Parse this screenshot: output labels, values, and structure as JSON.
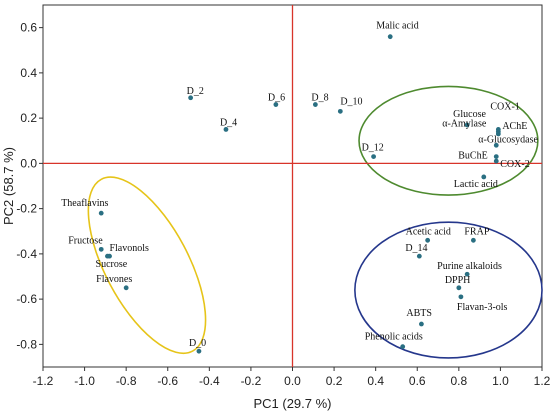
{
  "chart_data": {
    "type": "scatter",
    "xlabel": "PC1 (29.7 %)",
    "ylabel": "PC2 (58.7 %)",
    "xlim": [
      -1.2,
      1.2
    ],
    "ylim": [
      -0.9,
      0.7
    ],
    "xticks": [
      -1.2,
      -1.0,
      -0.8,
      -0.6,
      -0.4,
      -0.2,
      0.0,
      0.2,
      0.4,
      0.6,
      0.8,
      1.0,
      1.2
    ],
    "yticks": [
      -0.8,
      -0.6,
      -0.4,
      -0.2,
      0.0,
      0.2,
      0.4,
      0.6
    ],
    "xtick_labels": [
      "-1.2",
      "-1.0",
      "-0.8",
      "-0.6",
      "-0.4",
      "-0.2",
      "0.0",
      "0.2",
      "0.4",
      "0.6",
      "0.8",
      "1.0",
      "1.2"
    ],
    "ytick_labels": [
      "-0.8",
      "-0.6",
      "-0.4",
      "-0.2",
      "0.0",
      "0.2",
      "0.4",
      "0.6"
    ],
    "zero_lines": true,
    "colors": {
      "point": "#2a6f82",
      "zero_line": "#d8342a",
      "ellipse_yellow": "#e6c419",
      "ellipse_green": "#4e8a2f",
      "ellipse_blue": "#25378c"
    },
    "points": [
      {
        "label": "Malic acid",
        "x": 0.47,
        "y": 0.56
      },
      {
        "label": "D_2",
        "x": -0.49,
        "y": 0.29
      },
      {
        "label": "D_6",
        "x": -0.08,
        "y": 0.26
      },
      {
        "label": "D_8",
        "x": 0.11,
        "y": 0.26
      },
      {
        "label": "D_10",
        "x": 0.23,
        "y": 0.23
      },
      {
        "label": "D_4",
        "x": -0.32,
        "y": 0.15
      },
      {
        "label": "Glucose",
        "x": 0.84,
        "y": 0.17
      },
      {
        "label": "COX-1",
        "x": 0.99,
        "y": 0.15
      },
      {
        "label": "α-Amylase",
        "x": 0.99,
        "y": 0.14
      },
      {
        "label": "AChE",
        "x": 0.99,
        "y": 0.13
      },
      {
        "label": "α-Glucosydase",
        "x": 0.98,
        "y": 0.08
      },
      {
        "label": "D_12",
        "x": 0.39,
        "y": 0.03
      },
      {
        "label": "BuChE",
        "x": 0.98,
        "y": 0.03
      },
      {
        "label": "COX-2",
        "x": 0.98,
        "y": 0.01
      },
      {
        "label": "Lactic acid",
        "x": 0.92,
        "y": -0.06
      },
      {
        "label": "Theaflavins",
        "x": -0.92,
        "y": -0.22
      },
      {
        "label": "Fructose",
        "x": -0.92,
        "y": -0.38
      },
      {
        "label": "Flavonols",
        "x": -0.89,
        "y": -0.41
      },
      {
        "label": "Sucrose",
        "x": -0.88,
        "y": -0.41
      },
      {
        "label": "Flavones",
        "x": -0.8,
        "y": -0.55
      },
      {
        "label": "D_0",
        "x": -0.45,
        "y": -0.83
      },
      {
        "label": "Acetic acid",
        "x": 0.65,
        "y": -0.34
      },
      {
        "label": "FRAP",
        "x": 0.87,
        "y": -0.34
      },
      {
        "label": "D_14",
        "x": 0.61,
        "y": -0.41
      },
      {
        "label": "Purine alkaloids",
        "x": 0.84,
        "y": -0.49
      },
      {
        "label": "DPPH",
        "x": 0.8,
        "y": -0.55
      },
      {
        "label": "Flavan-3-ols",
        "x": 0.81,
        "y": -0.59
      },
      {
        "label": "ABTS",
        "x": 0.62,
        "y": -0.71
      },
      {
        "label": "Phenolic acids",
        "x": 0.53,
        "y": -0.81
      }
    ],
    "ellipses": [
      {
        "color_key": "ellipse_yellow",
        "cx": -0.7,
        "cy": -0.45,
        "rx": 0.2,
        "ry": 0.43,
        "angle_deg": -28
      },
      {
        "color_key": "ellipse_green",
        "cx": 0.75,
        "cy": 0.1,
        "rx": 0.43,
        "ry": 0.24,
        "angle_deg": 0
      },
      {
        "color_key": "ellipse_blue",
        "cx": 0.75,
        "cy": -0.56,
        "rx": 0.45,
        "ry": 0.3,
        "angle_deg": 0
      }
    ]
  }
}
